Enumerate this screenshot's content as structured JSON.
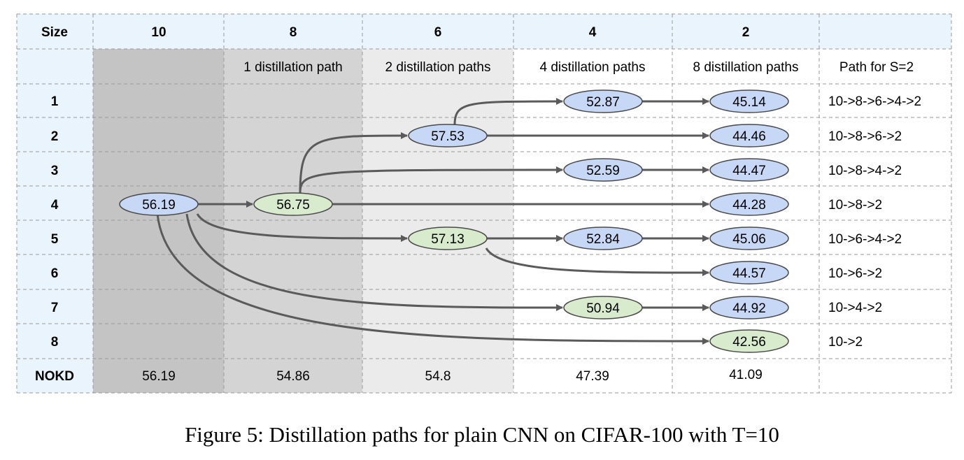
{
  "table": {
    "corner_label": "Size",
    "columns": [
      "10",
      "8",
      "6",
      "4",
      "2"
    ],
    "subheaders": [
      "",
      "1 distillation path",
      "2 distillation paths",
      "4 distillation paths",
      "8 distillation paths",
      "Path for S=2"
    ],
    "rows": [
      "1",
      "2",
      "3",
      "4",
      "5",
      "6",
      "7",
      "8"
    ],
    "nokd_label": "NOKD",
    "nokd_values": [
      "56.19",
      "54.86",
      "54.8",
      "47.39",
      "41.09"
    ],
    "paths": [
      "10->8->6->4->2",
      "10->8->6->2",
      "10->8->4->2",
      "10->8->2",
      "10->6->4->2",
      "10->6->2",
      "10->4->2",
      "10->2"
    ]
  },
  "nodes": [
    {
      "id": "n10",
      "col": 0,
      "row": 3,
      "value": "56.19",
      "color": "blue"
    },
    {
      "id": "n8",
      "col": 1,
      "row": 3,
      "value": "56.75",
      "color": "green"
    },
    {
      "id": "n6a",
      "col": 2,
      "row": 1,
      "value": "57.53",
      "color": "blue"
    },
    {
      "id": "n6b",
      "col": 2,
      "row": 4,
      "value": "57.13",
      "color": "green"
    },
    {
      "id": "n4a",
      "col": 3,
      "row": 0,
      "value": "52.87",
      "color": "blue"
    },
    {
      "id": "n4b",
      "col": 3,
      "row": 2,
      "value": "52.59",
      "color": "blue"
    },
    {
      "id": "n4c",
      "col": 3,
      "row": 4,
      "value": "52.84",
      "color": "blue"
    },
    {
      "id": "n4d",
      "col": 3,
      "row": 6,
      "value": "50.94",
      "color": "green"
    },
    {
      "id": "n2a",
      "col": 4,
      "row": 0,
      "value": "45.14",
      "color": "blue"
    },
    {
      "id": "n2b",
      "col": 4,
      "row": 1,
      "value": "44.46",
      "color": "blue"
    },
    {
      "id": "n2c",
      "col": 4,
      "row": 2,
      "value": "44.47",
      "color": "blue"
    },
    {
      "id": "n2d",
      "col": 4,
      "row": 3,
      "value": "44.28",
      "color": "blue"
    },
    {
      "id": "n2e",
      "col": 4,
      "row": 4,
      "value": "45.06",
      "color": "blue"
    },
    {
      "id": "n2f",
      "col": 4,
      "row": 5,
      "value": "44.57",
      "color": "blue"
    },
    {
      "id": "n2g",
      "col": 4,
      "row": 6,
      "value": "44.92",
      "color": "blue"
    },
    {
      "id": "n2h",
      "col": 4,
      "row": 7,
      "value": "42.56",
      "color": "green"
    }
  ],
  "edges": [
    [
      "n10",
      "n8"
    ],
    [
      "n10",
      "n6b"
    ],
    [
      "n10",
      "n4d"
    ],
    [
      "n10",
      "n2h"
    ],
    [
      "n8",
      "n6a"
    ],
    [
      "n8",
      "n4b"
    ],
    [
      "n8",
      "n2d"
    ],
    [
      "n6a",
      "n4a"
    ],
    [
      "n6a",
      "n2b"
    ],
    [
      "n6b",
      "n4c"
    ],
    [
      "n6b",
      "n2f"
    ],
    [
      "n4a",
      "n2a"
    ],
    [
      "n4b",
      "n2c"
    ],
    [
      "n4c",
      "n2e"
    ],
    [
      "n4d",
      "n2g"
    ]
  ],
  "colors": {
    "header_bg": "#eaf4fd",
    "col10_bg": "#c4c4c4",
    "col8_bg": "#d4d4d4",
    "col6_bg": "#ebebeb",
    "node_blue": "#c7d7f6",
    "node_green": "#d8ebcc",
    "edge": "#5a5a5a"
  },
  "caption": "Figure 5: Distillation paths for plain CNN on CIFAR-100 with T=10"
}
